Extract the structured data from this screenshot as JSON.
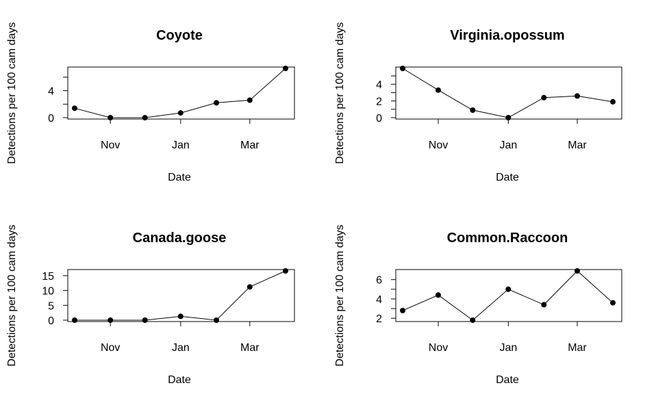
{
  "chart_data": [
    {
      "type": "line",
      "title": "Coyote",
      "xlabel": "Date",
      "ylabel": "Detections per 100 cam days",
      "x": [
        "2019-10-01",
        "2019-11-01",
        "2019-12-01",
        "2020-01-01",
        "2020-02-01",
        "2020-03-01",
        "2020-04-01"
      ],
      "y": [
        1.4,
        0.0,
        0.0,
        0.7,
        2.2,
        2.6,
        7.3
      ],
      "x_ticks": [
        "Nov",
        "Jan",
        "Mar"
      ],
      "x_tick_values": [
        "2019-11-01",
        "2020-01-01",
        "2020-03-01"
      ],
      "y_ticks": [
        0,
        2,
        4,
        6
      ],
      "y_tick_labels": [
        "0",
        "",
        "4",
        ""
      ],
      "ylim": [
        0,
        7.3
      ],
      "grid": false
    },
    {
      "type": "line",
      "title": "Virginia.opossum",
      "xlabel": "Date",
      "ylabel": "Detections per 100 cam days",
      "x": [
        "2019-10-01",
        "2019-11-01",
        "2019-12-01",
        "2020-01-01",
        "2020-02-01",
        "2020-03-01",
        "2020-04-01"
      ],
      "y": [
        5.9,
        3.3,
        0.9,
        0.0,
        2.4,
        2.6,
        1.9
      ],
      "x_ticks": [
        "Nov",
        "Jan",
        "Mar"
      ],
      "x_tick_values": [
        "2019-11-01",
        "2020-01-01",
        "2020-03-01"
      ],
      "y_ticks": [
        0,
        1,
        2,
        3,
        4,
        5
      ],
      "y_tick_labels": [
        "0",
        "",
        "2",
        "",
        "4",
        ""
      ],
      "ylim": [
        0,
        5.9
      ],
      "grid": false
    },
    {
      "type": "line",
      "title": "Canada.goose",
      "xlabel": "Date",
      "ylabel": "Detections per 100 cam days",
      "x": [
        "2019-10-01",
        "2019-11-01",
        "2019-12-01",
        "2020-01-01",
        "2020-02-01",
        "2020-03-01",
        "2020-04-01"
      ],
      "y": [
        0.0,
        0.0,
        0.0,
        1.3,
        0.0,
        11.2,
        16.6
      ],
      "x_ticks": [
        "Nov",
        "Jan",
        "Mar"
      ],
      "x_tick_values": [
        "2019-11-01",
        "2020-01-01",
        "2020-03-01"
      ],
      "y_ticks": [
        0,
        5,
        10,
        15
      ],
      "y_tick_labels": [
        "0",
        "5",
        "10",
        "15"
      ],
      "ylim": [
        0,
        16.6
      ],
      "grid": false
    },
    {
      "type": "line",
      "title": "Common.Raccoon",
      "xlabel": "Date",
      "ylabel": "Detections per 100 cam days",
      "x": [
        "2019-10-01",
        "2019-11-01",
        "2019-12-01",
        "2020-01-01",
        "2020-02-01",
        "2020-03-01",
        "2020-04-01"
      ],
      "y": [
        2.8,
        4.4,
        1.8,
        5.0,
        3.4,
        6.9,
        3.6
      ],
      "x_ticks": [
        "Nov",
        "Jan",
        "Mar"
      ],
      "x_tick_values": [
        "2019-11-01",
        "2020-01-01",
        "2020-03-01"
      ],
      "y_ticks": [
        2,
        3,
        4,
        5,
        6
      ],
      "y_tick_labels": [
        "2",
        "",
        "4",
        "",
        "6"
      ],
      "ylim": [
        1.8,
        6.9
      ],
      "grid": false
    }
  ]
}
